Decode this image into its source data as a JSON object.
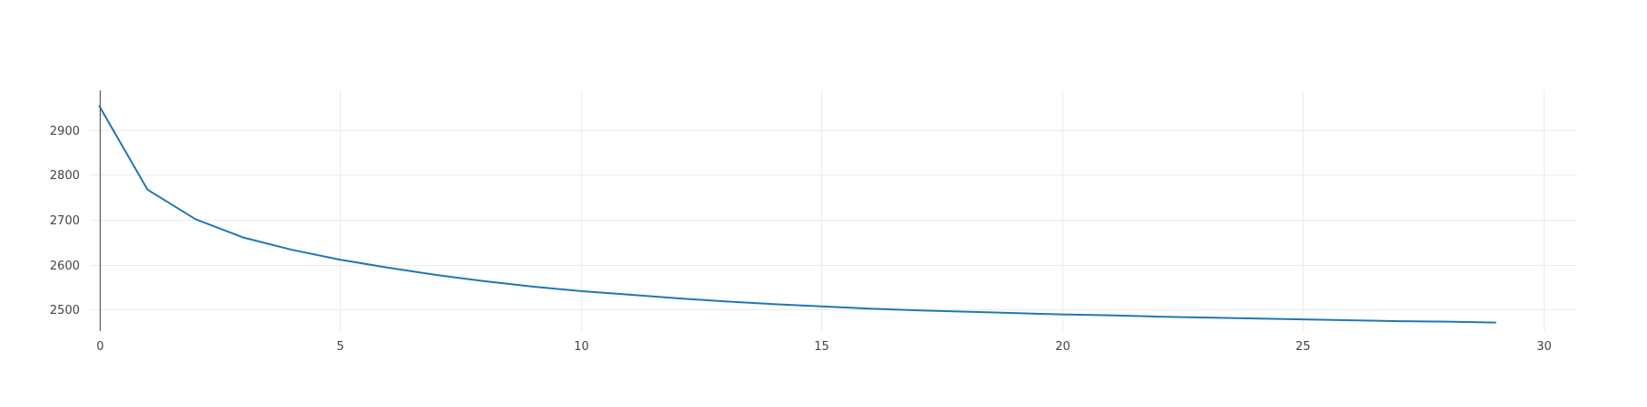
{
  "chart_data": {
    "type": "line",
    "title": "",
    "xlabel": "",
    "ylabel": "",
    "xlim": [
      -0.2,
      30.7
    ],
    "ylim": [
      2452,
      2988
    ],
    "x_ticks": [
      0,
      5,
      10,
      15,
      20,
      25,
      30
    ],
    "x_tick_labels": [
      "0",
      "5",
      "10",
      "15",
      "20",
      "25",
      "30"
    ],
    "y_ticks": [
      2500,
      2600,
      2700,
      2800,
      2900
    ],
    "y_tick_labels": [
      "2500",
      "2600",
      "2700",
      "2800",
      "2900"
    ],
    "grid": true,
    "zero_line_x": 0,
    "series": [
      {
        "color": "#1f77b4",
        "x": [
          0,
          1,
          2,
          3,
          4,
          5,
          6,
          7,
          8,
          9,
          10,
          11,
          12,
          13,
          14,
          15,
          16,
          17,
          18,
          19,
          20,
          21,
          22,
          23,
          24,
          25,
          26,
          27,
          28,
          29
        ],
        "y": [
          2953,
          2767,
          2701,
          2660,
          2633,
          2611,
          2593,
          2577,
          2563,
          2551,
          2541,
          2533,
          2525,
          2518,
          2512,
          2507,
          2502,
          2498,
          2495,
          2492,
          2489,
          2487,
          2484,
          2482,
          2480,
          2478,
          2476,
          2474,
          2473,
          2471
        ]
      }
    ]
  }
}
